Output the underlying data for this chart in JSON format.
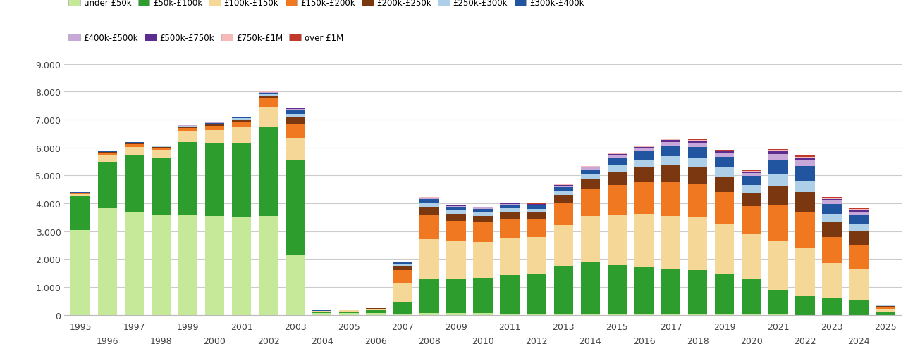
{
  "years": [
    1995,
    1996,
    1997,
    1998,
    1999,
    2000,
    2001,
    2002,
    2003,
    2004,
    2005,
    2006,
    2007,
    2008,
    2009,
    2010,
    2011,
    2012,
    2013,
    2014,
    2015,
    2016,
    2017,
    2018,
    2019,
    2020,
    2021,
    2022,
    2023,
    2024,
    2025
  ],
  "under50k": [
    3050,
    3820,
    3700,
    3600,
    3600,
    3560,
    3530,
    3560,
    2150,
    60,
    60,
    80,
    50,
    70,
    60,
    60,
    50,
    40,
    30,
    20,
    20,
    10,
    10,
    10,
    10,
    10,
    10,
    5,
    5,
    5,
    5
  ],
  "50k_100k": [
    1200,
    1680,
    2030,
    2050,
    2590,
    2590,
    2630,
    3190,
    3400,
    60,
    70,
    90,
    400,
    1230,
    1240,
    1270,
    1380,
    1450,
    1730,
    1890,
    1760,
    1700,
    1620,
    1600,
    1480,
    1270,
    890,
    680,
    590,
    530,
    120
  ],
  "100k_150k": [
    80,
    230,
    290,
    260,
    400,
    480,
    570,
    710,
    800,
    20,
    30,
    40,
    680,
    1430,
    1340,
    1290,
    1340,
    1300,
    1470,
    1650,
    1810,
    1920,
    1910,
    1880,
    1780,
    1640,
    1740,
    1730,
    1270,
    1120,
    100
  ],
  "150k_200k": [
    40,
    80,
    100,
    80,
    120,
    150,
    200,
    290,
    500,
    10,
    10,
    20,
    490,
    870,
    730,
    700,
    680,
    660,
    790,
    940,
    1080,
    1130,
    1230,
    1200,
    1130,
    980,
    1320,
    1290,
    940,
    870,
    60
  ],
  "200k_250k": [
    15,
    30,
    40,
    35,
    40,
    55,
    80,
    120,
    250,
    5,
    5,
    5,
    140,
    280,
    250,
    240,
    250,
    240,
    290,
    360,
    460,
    520,
    600,
    600,
    560,
    490,
    680,
    710,
    510,
    470,
    35
  ],
  "250k_300k": [
    8,
    15,
    18,
    15,
    20,
    25,
    35,
    50,
    110,
    2,
    2,
    3,
    60,
    130,
    120,
    120,
    120,
    115,
    140,
    175,
    240,
    280,
    330,
    350,
    330,
    280,
    390,
    400,
    300,
    270,
    20
  ],
  "300k_400k": [
    8,
    14,
    16,
    13,
    18,
    22,
    35,
    50,
    120,
    2,
    2,
    3,
    65,
    140,
    130,
    125,
    120,
    120,
    145,
    185,
    260,
    300,
    370,
    390,
    375,
    310,
    540,
    530,
    360,
    330,
    20
  ],
  "400k_500k": [
    3,
    6,
    7,
    6,
    7,
    9,
    14,
    18,
    50,
    1,
    1,
    1,
    20,
    45,
    40,
    40,
    40,
    38,
    50,
    65,
    90,
    105,
    130,
    140,
    130,
    110,
    190,
    185,
    120,
    110,
    8
  ],
  "500k_750k": [
    2,
    4,
    4,
    3,
    4,
    5,
    7,
    10,
    28,
    0,
    0,
    0,
    10,
    22,
    20,
    20,
    20,
    18,
    24,
    32,
    45,
    55,
    72,
    77,
    72,
    60,
    105,
    98,
    68,
    62,
    4
  ],
  "750k_1M": [
    1,
    2,
    2,
    1,
    2,
    2,
    3,
    4,
    13,
    0,
    0,
    0,
    3,
    8,
    8,
    8,
    8,
    7,
    9,
    12,
    17,
    21,
    27,
    29,
    27,
    23,
    45,
    42,
    28,
    25,
    2
  ],
  "over1M": [
    1,
    2,
    2,
    1,
    2,
    2,
    3,
    4,
    11,
    0,
    0,
    0,
    3,
    8,
    8,
    8,
    8,
    7,
    9,
    12,
    17,
    21,
    27,
    29,
    27,
    23,
    45,
    42,
    28,
    25,
    2
  ],
  "colors": {
    "under50k": "#c5e899",
    "50k_100k": "#2d9e2d",
    "100k_150k": "#f5d898",
    "150k_200k": "#f07820",
    "200k_250k": "#7b3810",
    "250k_300k": "#aecfe8",
    "300k_400k": "#2255a0",
    "400k_500k": "#c8a8d8",
    "500k_750k": "#5c2d91",
    "750k_1M": "#f7b8b8",
    "over1M": "#c0392b"
  },
  "labels": {
    "under50k": "under £50k",
    "50k_100k": "£50k-£100k",
    "100k_150k": "£100k-£150k",
    "150k_200k": "£150k-£200k",
    "200k_250k": "£200k-£250k",
    "250k_300k": "£250k-£300k",
    "300k_400k": "£300k-£400k",
    "400k_500k": "£400k-£500k",
    "500k_750k": "£500k-£750k",
    "750k_1M": "£750k-£1M",
    "over1M": "over £1M"
  },
  "ylim": [
    0,
    9000
  ],
  "yticks": [
    0,
    1000,
    2000,
    3000,
    4000,
    5000,
    6000,
    7000,
    8000,
    9000
  ],
  "background": "#ffffff",
  "grid_color": "#cccccc"
}
